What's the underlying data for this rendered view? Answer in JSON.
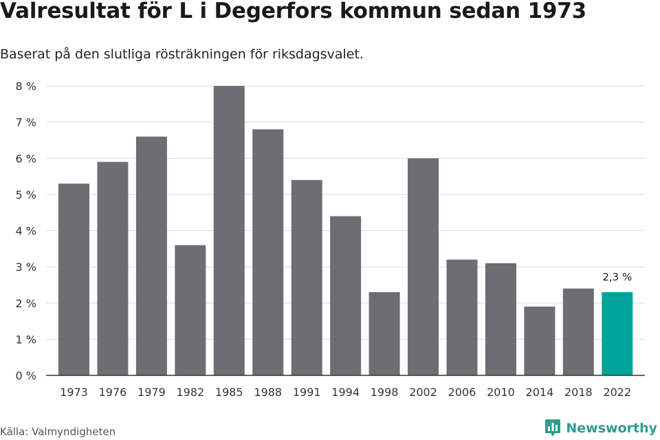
{
  "header": {
    "title": "Valresultat för L i Degerfors kommun sedan 1973",
    "subtitle": "Baserat på den slutliga rösträkningen för riksdagsvalet."
  },
  "footer": {
    "source": "Källa: Valmyndigheten",
    "brand": "Newsworthy",
    "brand_icon": "bar-chart-logo-icon"
  },
  "colors": {
    "bar": "#6e6d73",
    "highlight": "#00a39a",
    "grid": "#dcdcdc",
    "axis": "#333333",
    "brand": "#2a9d8f"
  },
  "chart_data": {
    "type": "bar",
    "categories": [
      "1973",
      "1976",
      "1979",
      "1982",
      "1985",
      "1988",
      "1991",
      "1994",
      "1998",
      "2002",
      "2006",
      "2010",
      "2014",
      "2018",
      "2022"
    ],
    "values": [
      5.3,
      5.9,
      6.6,
      3.6,
      8.0,
      6.8,
      5.4,
      4.4,
      2.3,
      6.0,
      3.2,
      3.1,
      1.9,
      2.4,
      2.3
    ],
    "highlight_category": "2022",
    "annotations": [
      {
        "category": "2022",
        "text": "2,3 %"
      }
    ],
    "yticks": [
      0,
      1,
      2,
      3,
      4,
      5,
      6,
      7,
      8
    ],
    "ytick_labels": [
      "0 %",
      "1 %",
      "2 %",
      "3 %",
      "4 %",
      "5 %",
      "6 %",
      "7 %",
      "8 %"
    ],
    "ylim": [
      0,
      8
    ],
    "grid": true,
    "legend": "none",
    "xlabel": "",
    "ylabel": ""
  }
}
